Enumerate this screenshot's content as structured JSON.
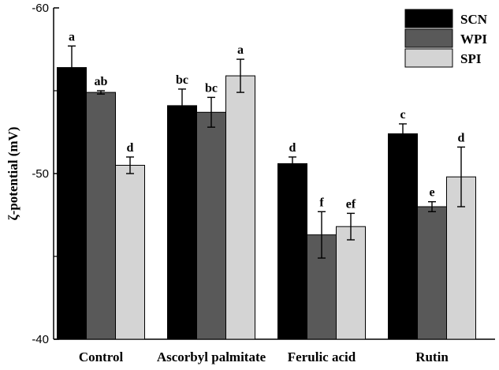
{
  "chart_data": {
    "type": "bar",
    "title": "",
    "xlabel": "",
    "ylabel": "ζ-potential (mV)",
    "y_axis_inverted": true,
    "ylim": [
      -40,
      -60
    ],
    "yticks": [
      -60,
      -50,
      -40
    ],
    "grid": false,
    "legend_position": "top-right",
    "categories": [
      "Control",
      "Ascorbyl palmitate",
      "Ferulic acid",
      "Rutin"
    ],
    "series": [
      {
        "name": "SCN",
        "color": "#000000",
        "values": [
          -56.4,
          -54.1,
          -50.6,
          -52.4
        ],
        "errors": [
          1.3,
          1.0,
          0.4,
          0.6
        ],
        "labels": [
          "a",
          "bc",
          "d",
          "c"
        ]
      },
      {
        "name": "WPI",
        "color": "#595959",
        "values": [
          -54.9,
          -53.7,
          -46.3,
          -48.0
        ],
        "errors": [
          0.1,
          0.9,
          1.4,
          0.3
        ],
        "labels": [
          "ab",
          "bc",
          "f",
          "e"
        ]
      },
      {
        "name": "SPI",
        "color": "#d4d4d4",
        "values": [
          -50.5,
          -55.9,
          -46.8,
          -49.8
        ],
        "errors": [
          0.5,
          1.0,
          0.8,
          1.8
        ],
        "labels": [
          "d",
          "a",
          "ef",
          "d"
        ]
      }
    ]
  }
}
